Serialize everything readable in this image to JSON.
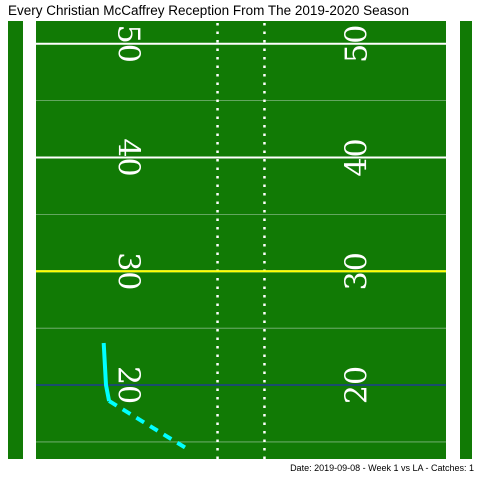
{
  "title": "Every Christian McCaffrey Reception From The 2019-2020 Season",
  "caption": "Date: 2019-09-08  -  Week 1 vs LA  -  Catches: 1",
  "colors": {
    "field": "#117a05",
    "border": "#ffffff",
    "yard_line": "#7fb57f",
    "line_of_scrimmage": "#ffff00",
    "first_down": "#1a4d6d",
    "route": "#00ffff",
    "hash": "#ffffff"
  },
  "chart_data": {
    "type": "line",
    "title": "Every Christian McCaffrey Reception From The 2019-2020 Season",
    "xlabel": "",
    "ylabel": "",
    "yard_labels": [
      "50",
      "40",
      "30",
      "20"
    ],
    "line_of_scrimmage": 30,
    "first_down_line": 20,
    "ylim": [
      13.5,
      52
    ],
    "series": [
      {
        "style": "solid",
        "points": [
          {
            "x": 8.8,
            "y": 23.7
          },
          {
            "x": 9.1,
            "y": 20.0
          },
          {
            "x": 9.5,
            "y": 18.6
          }
        ]
      },
      {
        "style": "dashed",
        "points": [
          {
            "x": 9.5,
            "y": 18.6
          },
          {
            "x": 19.4,
            "y": 14.5
          }
        ]
      }
    ]
  }
}
